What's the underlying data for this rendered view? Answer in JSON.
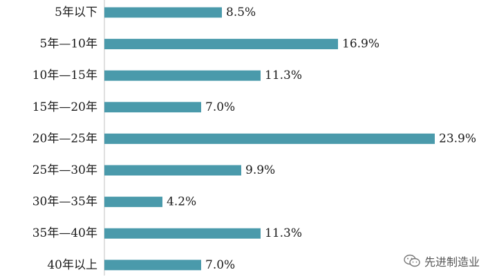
{
  "chart_data": {
    "type": "bar",
    "orientation": "horizontal",
    "categories": [
      "5年以下",
      "5年—10年",
      "10年—15年",
      "15年—20年",
      "20年—25年",
      "25年—30年",
      "30年—35年",
      "35年—40年",
      "40年以上"
    ],
    "values": [
      8.5,
      16.9,
      11.3,
      7.0,
      23.9,
      9.9,
      4.2,
      11.3,
      7.0
    ],
    "value_labels": [
      "8.5%",
      "16.9%",
      "11.3%",
      "7.0%",
      "23.9%",
      "9.9%",
      "4.2%",
      "11.3%",
      "7.0%"
    ],
    "unit": "%",
    "bar_color": "#4a9aab",
    "axis_color": "#bfbfbf",
    "grid": false,
    "legend": "none"
  },
  "watermark": {
    "text": "先进制造业",
    "icon": "wechat-icon"
  }
}
